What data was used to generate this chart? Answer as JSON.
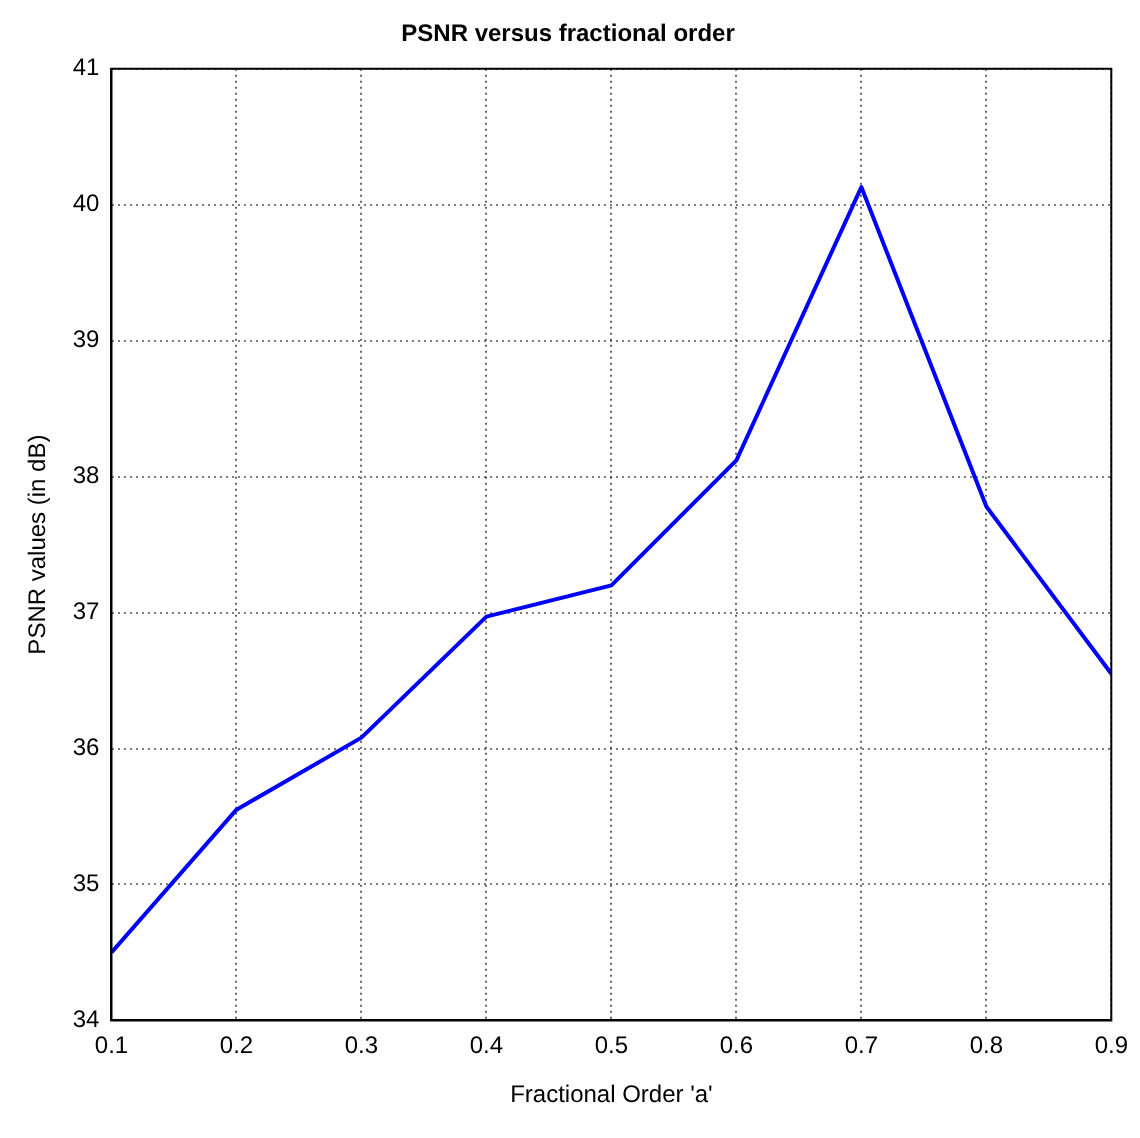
{
  "chart_data": {
    "type": "line",
    "title": "PSNR versus fractional order",
    "xlabel": "Fractional Order 'a'",
    "ylabel": "PSNR values (in dB)",
    "x": [
      0.1,
      0.2,
      0.3,
      0.4,
      0.5,
      0.6,
      0.7,
      0.8,
      0.9
    ],
    "series": [
      {
        "color": "#0000ff",
        "values": [
          34.5,
          35.55,
          36.08,
          36.97,
          37.2,
          38.12,
          40.13,
          37.78,
          36.55
        ]
      }
    ],
    "xlim": [
      0.1,
      0.9
    ],
    "xticks": [
      0.1,
      0.2,
      0.3,
      0.4,
      0.5,
      0.6,
      0.7,
      0.8,
      0.9
    ],
    "ylim": [
      34,
      41
    ],
    "yticks": [
      34,
      35,
      36,
      37,
      38,
      39,
      40,
      41
    ],
    "grid": true,
    "line_style": "solid",
    "marker": "none",
    "legend": false
  }
}
